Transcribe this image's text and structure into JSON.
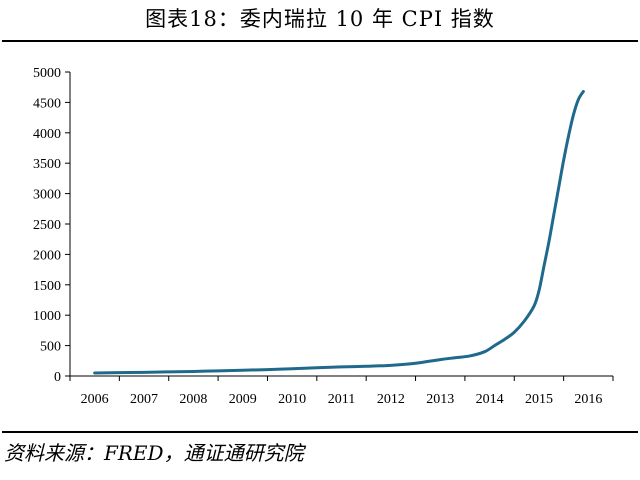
{
  "figure": {
    "title": "图表18：委内瑞拉 10 年 CPI 指数",
    "source": "资料来源：FRED，通证通研究院"
  },
  "colors": {
    "line": "#1f6a8c",
    "axis": "#000000"
  },
  "chart_data": {
    "type": "line",
    "title": "",
    "xlabel": "",
    "ylabel": "",
    "categories": [
      "2006",
      "2007",
      "2008",
      "2009",
      "2010",
      "2011",
      "2012",
      "2013",
      "2014",
      "2015",
      "2016"
    ],
    "ylim": [
      0,
      5000
    ],
    "yticks": [
      0,
      500,
      1000,
      1500,
      2000,
      2500,
      3000,
      3500,
      4000,
      4500,
      5000
    ],
    "grid": false,
    "legend": "none",
    "series": [
      {
        "x": [
          2006.0,
          2006.5,
          2007.0,
          2007.5,
          2008.0,
          2008.5,
          2009.0,
          2009.5,
          2010.0,
          2010.5,
          2011.0,
          2011.5,
          2012.0,
          2012.5,
          2013.0,
          2013.3,
          2013.6,
          2013.9,
          2014.1,
          2014.3,
          2014.5,
          2014.7,
          2014.9,
          2015.0,
          2015.1,
          2015.2,
          2015.3,
          2015.4,
          2015.5,
          2015.6,
          2015.7,
          2015.8,
          2015.9
        ],
        "values": [
          50,
          55,
          60,
          68,
          75,
          85,
          95,
          105,
          120,
          135,
          150,
          160,
          175,
          210,
          270,
          300,
          330,
          400,
          500,
          600,
          720,
          900,
          1150,
          1400,
          1800,
          2200,
          2650,
          3100,
          3550,
          3950,
          4300,
          4550,
          4680
        ]
      }
    ]
  }
}
